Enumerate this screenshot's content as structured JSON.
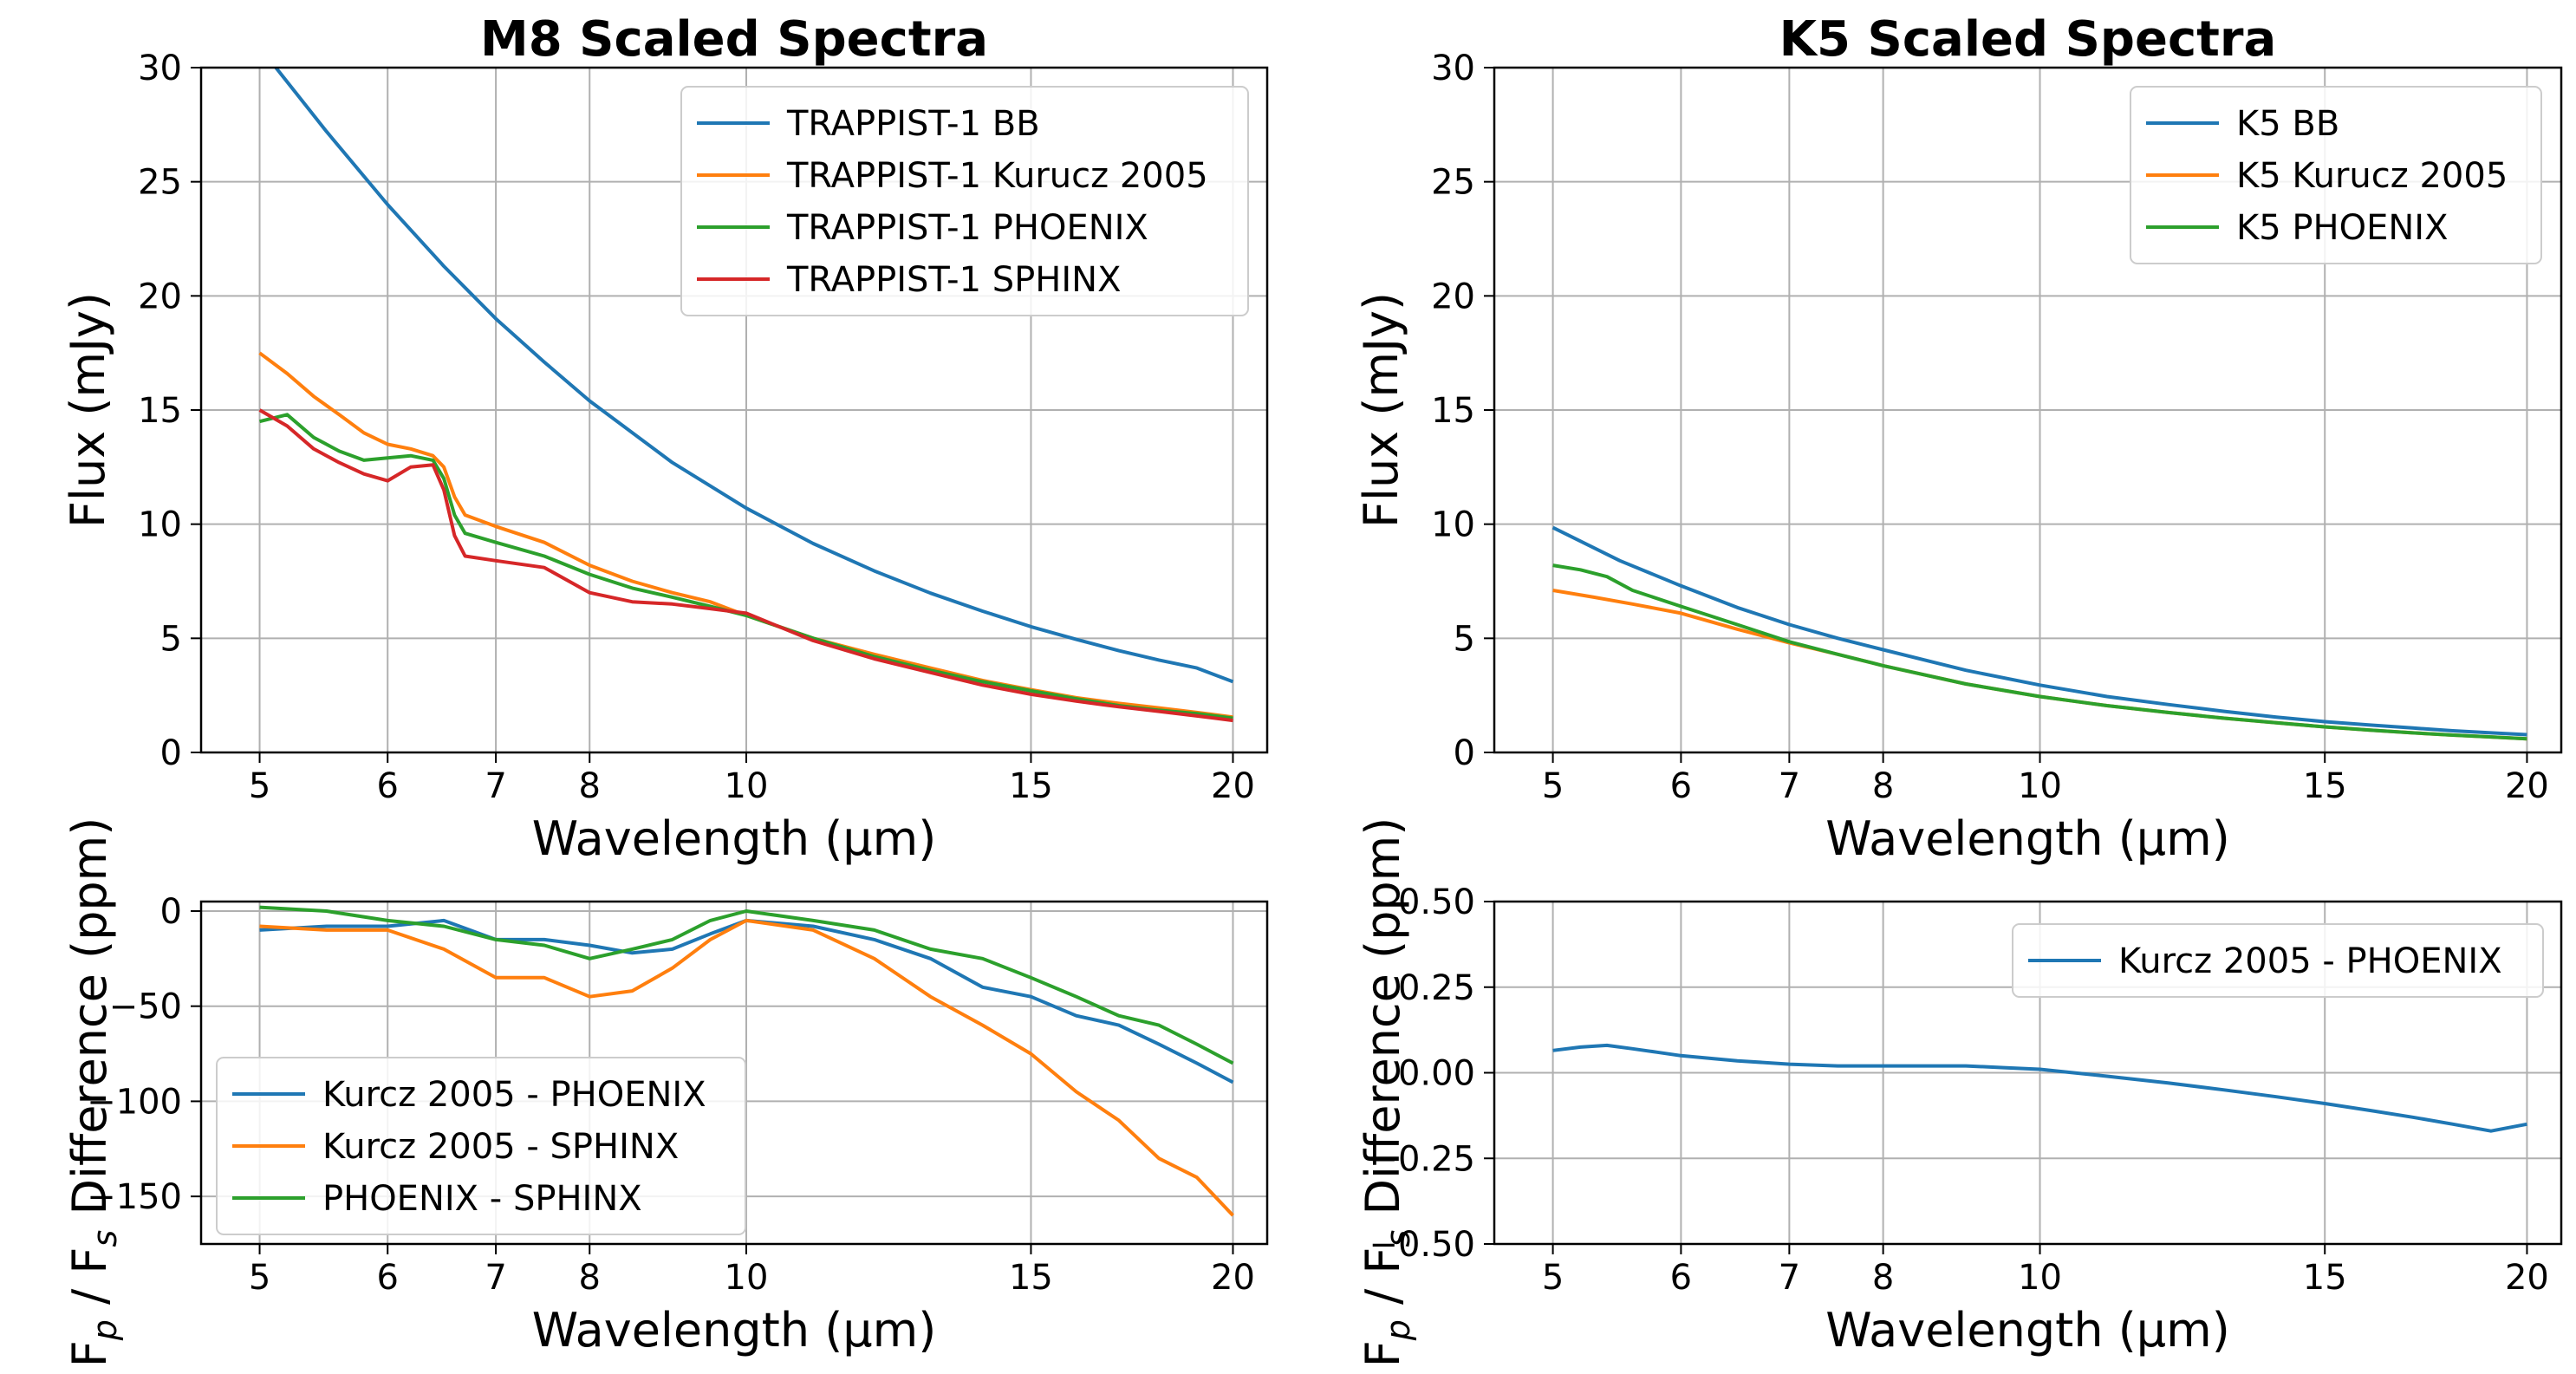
{
  "figure": {
    "colors": {
      "blue": "#1f77b4",
      "orange": "#ff7f0e",
      "green": "#2ca02c",
      "red": "#d62728",
      "grid": "#b0b0b0"
    }
  },
  "chart_data": [
    {
      "id": "m8-top",
      "type": "line",
      "title": "M8 Scaled Spectra",
      "xlabel": "Wavelength (µm)",
      "ylabel": "Flux (mJy)",
      "xscale": "log",
      "xlim": [
        4.6,
        21.0
      ],
      "ylim": [
        0,
        30
      ],
      "xticks": [
        5,
        6,
        7,
        8,
        10,
        15,
        20
      ],
      "yticks": [
        0,
        5,
        10,
        15,
        20,
        25,
        30
      ],
      "grid": true,
      "legend": "top-right",
      "series": [
        {
          "name": "TRAPPIST-1 BB",
          "color": "#1f77b4",
          "x": [
            5,
            5.5,
            6,
            6.5,
            7,
            7.5,
            8,
            9,
            10,
            11,
            12,
            13,
            14,
            15,
            16,
            17,
            18,
            19,
            20
          ],
          "y": [
            30.9,
            27.2,
            24.0,
            21.3,
            19.0,
            17.1,
            15.4,
            12.7,
            10.7,
            9.15,
            7.95,
            6.98,
            6.19,
            5.51,
            4.95,
            4.46,
            4.05,
            3.7,
            3.1
          ]
        },
        {
          "name": "TRAPPIST-1 Kurucz 2005",
          "color": "#ff7f0e",
          "x": [
            5,
            5.2,
            5.4,
            5.6,
            5.8,
            6,
            6.2,
            6.4,
            6.5,
            6.6,
            6.7,
            7,
            7.5,
            8,
            8.5,
            9,
            9.5,
            10,
            11,
            12,
            13,
            14,
            15,
            16,
            17,
            18,
            19,
            20
          ],
          "y": [
            17.5,
            16.6,
            15.6,
            14.8,
            14.0,
            13.5,
            13.3,
            13.0,
            12.5,
            11.2,
            10.4,
            9.9,
            9.2,
            8.2,
            7.5,
            7.0,
            6.6,
            6.0,
            5.0,
            4.3,
            3.7,
            3.15,
            2.75,
            2.4,
            2.15,
            1.95,
            1.75,
            1.55
          ]
        },
        {
          "name": "TRAPPIST-1 PHOENIX",
          "color": "#2ca02c",
          "x": [
            5,
            5.2,
            5.4,
            5.6,
            5.8,
            6,
            6.2,
            6.4,
            6.5,
            6.6,
            6.7,
            7,
            7.5,
            8,
            8.5,
            9,
            9.5,
            10,
            11,
            12,
            13,
            14,
            15,
            16,
            17,
            18,
            19,
            20
          ],
          "y": [
            14.5,
            14.8,
            13.8,
            13.2,
            12.8,
            12.9,
            13.0,
            12.8,
            12.0,
            10.4,
            9.6,
            9.2,
            8.6,
            7.8,
            7.2,
            6.8,
            6.4,
            6.0,
            5.0,
            4.2,
            3.6,
            3.1,
            2.7,
            2.35,
            2.05,
            1.85,
            1.7,
            1.5
          ]
        },
        {
          "name": "TRAPPIST-1 SPHINX",
          "color": "#d62728",
          "x": [
            5,
            5.2,
            5.4,
            5.6,
            5.8,
            6,
            6.2,
            6.4,
            6.5,
            6.6,
            6.7,
            7,
            7.5,
            8,
            8.5,
            9,
            9.5,
            10,
            11,
            12,
            13,
            14,
            15,
            16,
            17,
            18,
            19,
            20
          ],
          "y": [
            15.0,
            14.3,
            13.3,
            12.7,
            12.2,
            11.9,
            12.5,
            12.6,
            11.5,
            9.5,
            8.6,
            8.4,
            8.1,
            7.0,
            6.6,
            6.5,
            6.3,
            6.1,
            4.9,
            4.1,
            3.5,
            2.95,
            2.55,
            2.25,
            2.0,
            1.8,
            1.6,
            1.4
          ]
        }
      ]
    },
    {
      "id": "k5-top",
      "type": "line",
      "title": "K5 Scaled Spectra",
      "xlabel": "Wavelength (µm)",
      "ylabel": "Flux (mJy)",
      "xscale": "log",
      "xlim": [
        4.6,
        21.0
      ],
      "ylim": [
        0,
        30
      ],
      "xticks": [
        5,
        6,
        7,
        8,
        10,
        15,
        20
      ],
      "yticks": [
        0,
        5,
        10,
        15,
        20,
        25,
        30
      ],
      "grid": true,
      "legend": "top-right",
      "series": [
        {
          "name": "K5 BB",
          "color": "#1f77b4",
          "x": [
            5,
            5.5,
            6,
            6.5,
            7,
            7.5,
            8,
            9,
            10,
            11,
            12,
            13,
            14,
            15,
            16,
            17,
            18,
            19,
            20
          ],
          "y": [
            9.85,
            8.4,
            7.3,
            6.35,
            5.6,
            5.0,
            4.5,
            3.6,
            2.95,
            2.45,
            2.1,
            1.8,
            1.55,
            1.35,
            1.2,
            1.07,
            0.95,
            0.86,
            0.78
          ]
        },
        {
          "name": "K5 Kurucz 2005",
          "color": "#ff7f0e",
          "x": [
            5,
            5.3,
            5.6,
            6,
            6.5,
            7,
            7.5,
            8,
            9,
            10,
            11,
            12,
            13,
            14,
            15,
            16,
            17,
            18,
            19,
            20
          ],
          "y": [
            7.1,
            6.8,
            6.5,
            6.1,
            5.4,
            4.8,
            4.3,
            3.8,
            3.0,
            2.45,
            2.05,
            1.75,
            1.5,
            1.3,
            1.12,
            0.98,
            0.86,
            0.76,
            0.68,
            0.6
          ]
        },
        {
          "name": "K5 PHOENIX",
          "color": "#2ca02c",
          "x": [
            5,
            5.2,
            5.4,
            5.6,
            6,
            6.5,
            7,
            7.5,
            8,
            9,
            10,
            11,
            12,
            13,
            14,
            15,
            16,
            17,
            18,
            19,
            20
          ],
          "y": [
            8.2,
            8.0,
            7.7,
            7.1,
            6.4,
            5.6,
            4.85,
            4.3,
            3.8,
            3.0,
            2.45,
            2.05,
            1.75,
            1.5,
            1.3,
            1.12,
            0.98,
            0.86,
            0.76,
            0.68,
            0.6
          ]
        }
      ]
    },
    {
      "id": "m8-bottom",
      "type": "line",
      "title": "",
      "xlabel": "Wavelength (µm)",
      "ylabel": "F_p / F_s Difference (ppm)",
      "xscale": "log",
      "xlim": [
        4.6,
        21.0
      ],
      "ylim": [
        -175,
        5
      ],
      "xticks": [
        5,
        6,
        7,
        8,
        10,
        15,
        20
      ],
      "yticks": [
        0,
        -50,
        -100,
        -150
      ],
      "grid": true,
      "legend": "lower-left",
      "series": [
        {
          "name": "Kurcz 2005 - PHOENIX",
          "color": "#1f77b4",
          "x": [
            5,
            5.5,
            6,
            6.5,
            7,
            7.5,
            8,
            8.5,
            9,
            9.5,
            10,
            11,
            12,
            13,
            14,
            15,
            16,
            17,
            18,
            19,
            20
          ],
          "y": [
            -10,
            -8,
            -8,
            -5,
            -15,
            -15,
            -18,
            -22,
            -20,
            -12,
            -5,
            -8,
            -15,
            -25,
            -40,
            -45,
            -55,
            -60,
            -70,
            -80,
            -90
          ]
        },
        {
          "name": "Kurcz 2005 - SPHINX",
          "color": "#ff7f0e",
          "x": [
            5,
            5.5,
            6,
            6.5,
            7,
            7.5,
            8,
            8.5,
            9,
            9.5,
            10,
            11,
            12,
            13,
            14,
            15,
            16,
            17,
            18,
            19,
            20
          ],
          "y": [
            -8,
            -10,
            -10,
            -20,
            -35,
            -35,
            -45,
            -42,
            -30,
            -15,
            -5,
            -10,
            -25,
            -45,
            -60,
            -75,
            -95,
            -110,
            -130,
            -140,
            -160
          ]
        },
        {
          "name": "PHOENIX - SPHINX",
          "color": "#2ca02c",
          "x": [
            5,
            5.5,
            6,
            6.5,
            7,
            7.5,
            8,
            8.5,
            9,
            9.5,
            10,
            11,
            12,
            13,
            14,
            15,
            16,
            17,
            18,
            19,
            20
          ],
          "y": [
            2,
            0,
            -5,
            -8,
            -15,
            -18,
            -25,
            -20,
            -15,
            -5,
            0,
            -5,
            -10,
            -20,
            -25,
            -35,
            -45,
            -55,
            -60,
            -70,
            -80
          ]
        }
      ]
    },
    {
      "id": "k5-bottom",
      "type": "line",
      "title": "",
      "xlabel": "Wavelength (µm)",
      "ylabel": "F_p / F_s Difference (ppm)",
      "xscale": "log",
      "xlim": [
        4.6,
        21.0
      ],
      "ylim": [
        -0.5,
        0.5
      ],
      "xticks": [
        5,
        6,
        7,
        8,
        10,
        15,
        20
      ],
      "yticks": [
        0.5,
        0.25,
        0.0,
        -0.25,
        -0.5
      ],
      "yticklabels": [
        "0.50",
        "0.25",
        "0.00",
        "−0.25",
        "−0.50"
      ],
      "grid": true,
      "legend": "top-right",
      "series": [
        {
          "name": "Kurcz 2005 - PHOENIX",
          "color": "#1f77b4",
          "x": [
            5,
            5.2,
            5.4,
            5.6,
            5.8,
            6,
            6.5,
            7,
            7.5,
            8,
            8.5,
            9,
            9.5,
            10,
            11,
            12,
            13,
            14,
            15,
            16,
            17,
            18,
            19,
            20
          ],
          "y": [
            0.065,
            0.075,
            0.08,
            0.07,
            0.06,
            0.05,
            0.035,
            0.025,
            0.02,
            0.02,
            0.02,
            0.02,
            0.015,
            0.01,
            -0.01,
            -0.03,
            -0.05,
            -0.07,
            -0.09,
            -0.11,
            -0.13,
            -0.15,
            -0.17,
            -0.15
          ]
        }
      ]
    }
  ]
}
